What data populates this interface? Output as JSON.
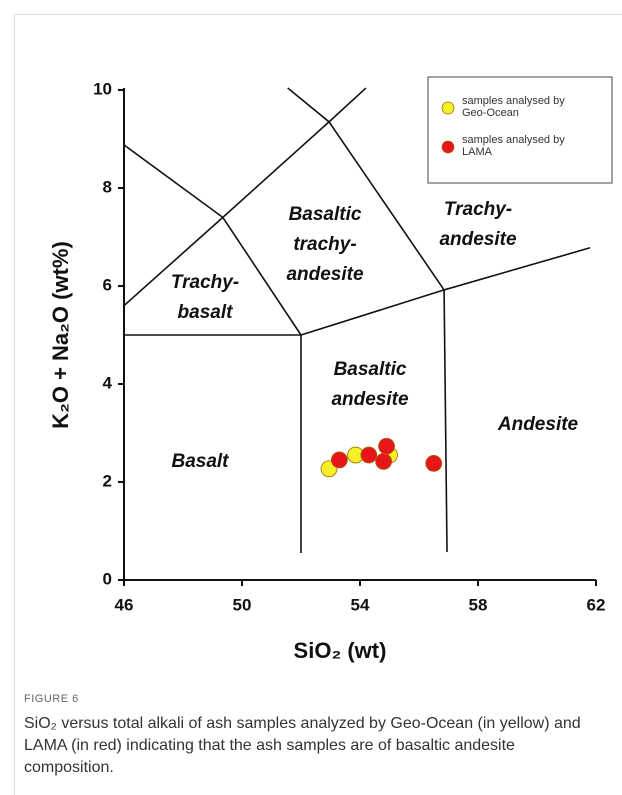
{
  "chart_data": {
    "type": "scatter",
    "ylabel": "K₂O + Na₂O (wt%)",
    "xlabel": "SiO₂ (wt)",
    "xlim": [
      46,
      62
    ],
    "xticks": [
      46,
      50,
      54,
      58,
      62
    ],
    "ylim": [
      0,
      10
    ],
    "yticks": [
      0,
      2,
      4,
      6,
      8,
      10
    ],
    "grid": false,
    "legend": "upper right",
    "series": [
      {
        "name": "samples analysed by Geo-Ocean",
        "color": "#f5f02a",
        "x": [
          52.95,
          53.85,
          55.0
        ],
        "values": [
          2.27,
          2.55,
          2.55
        ]
      },
      {
        "name": "samples analysed by LAMA",
        "color": "#e8161b",
        "x": [
          53.3,
          54.3,
          54.8,
          54.9,
          56.5
        ],
        "values": [
          2.45,
          2.55,
          2.42,
          2.73,
          2.38
        ]
      }
    ],
    "boundaries": [
      {
        "x": [
          52,
          52
        ],
        "y": [
          5,
          0.55
        ]
      },
      {
        "x": [
          46,
          52
        ],
        "y": [
          5,
          5
        ]
      },
      {
        "x": [
          52,
          56.85,
          61.8
        ],
        "y": [
          5,
          5.92,
          6.78
        ]
      },
      {
        "x": [
          56.85,
          56.95
        ],
        "y": [
          5.92,
          0.57
        ]
      },
      {
        "x": [
          46,
          49.35,
          52.95,
          54.2
        ],
        "y": [
          5.6,
          7.4,
          9.35,
          10.04
        ]
      },
      {
        "x": [
          46,
          49.35,
          52
        ],
        "y": [
          8.88,
          7.4,
          5
        ]
      },
      {
        "x": [
          51.55,
          52.95,
          56.85
        ],
        "y": [
          10.04,
          9.35,
          5.92
        ]
      }
    ],
    "annotations": [
      {
        "lines": [
          "Basalt"
        ]
      },
      {
        "lines": [
          "Trachy-",
          "basalt"
        ]
      },
      {
        "lines": [
          "Basaltic",
          "trachy-",
          "andesite"
        ]
      },
      {
        "lines": [
          "Trachy-",
          "andesite"
        ]
      },
      {
        "lines": [
          "Basaltic",
          "andesite"
        ]
      },
      {
        "lines": [
          "Andesite"
        ]
      }
    ]
  },
  "figure": {
    "label": "FIGURE 6",
    "caption": "SiO₂ versus total alkali of ash samples analyzed by Geo-Ocean (in yellow) and LAMA (in red) indicating that the ash samples are of basaltic andesite composition."
  }
}
